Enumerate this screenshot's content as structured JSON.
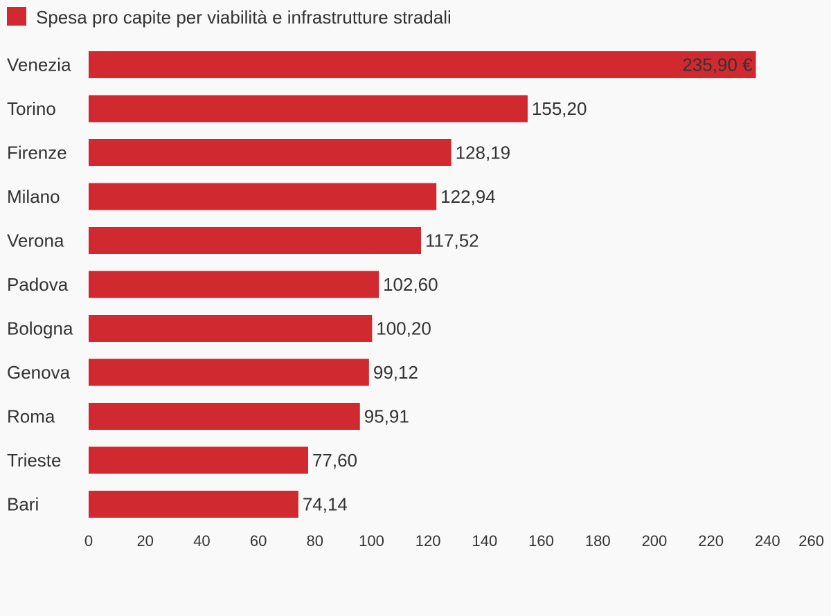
{
  "chart_data": {
    "type": "hbar",
    "categories": [
      "Venezia",
      "Torino",
      "Firenze",
      "Milano",
      "Verona",
      "Padova",
      "Bologna",
      "Genova",
      "Roma",
      "Trieste",
      "Bari"
    ],
    "series": [
      {
        "name": "Spesa pro capite per viabilità e infrastrutture stradali",
        "color": "#d0292f",
        "values": [
          235.9,
          155.2,
          128.19,
          122.94,
          117.52,
          102.6,
          100.2,
          99.12,
          95.91,
          77.6,
          74.14
        ],
        "value_labels": [
          "235,90 €",
          "155,20",
          "128,19",
          "122,94",
          "117,52",
          "102,60",
          "100,20",
          "99,12",
          "95,91",
          "77,60",
          "74,14"
        ]
      }
    ],
    "xlim": [
      0,
      260
    ],
    "xticks": [
      0,
      20,
      40,
      60,
      80,
      100,
      120,
      140,
      160,
      180,
      200,
      220,
      240,
      260
    ],
    "grid": false,
    "legend": "top-left"
  }
}
